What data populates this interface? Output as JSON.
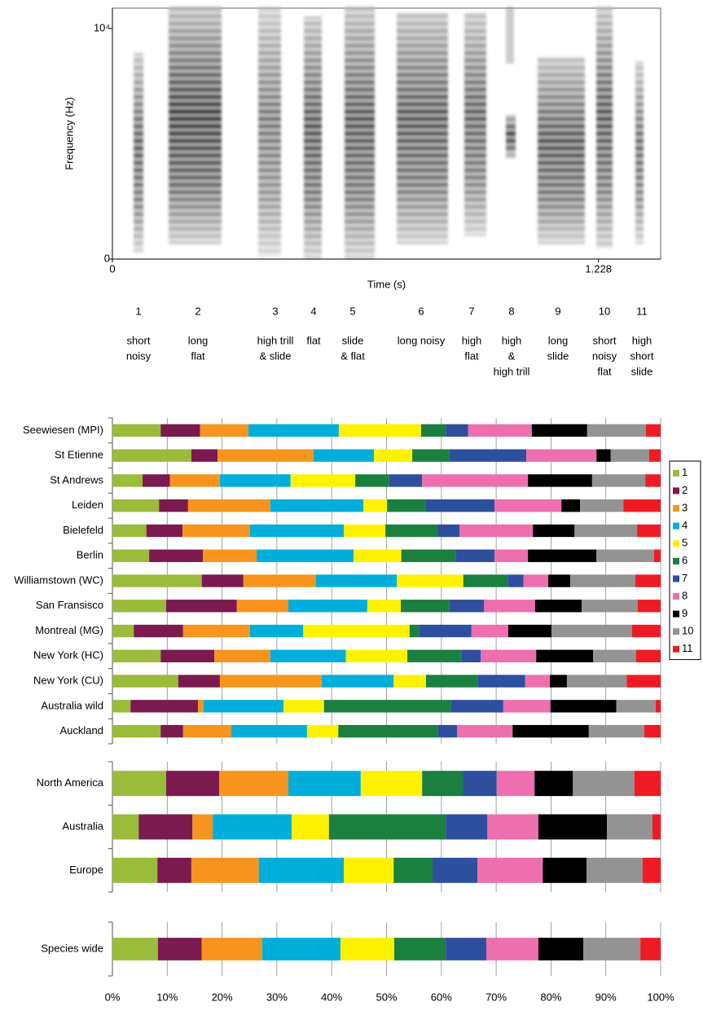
{
  "chart_data": [
    {
      "type": "spectrogram",
      "x_label": "Time (s)",
      "y_label": "Frequency (Hz)",
      "xlim": [
        0,
        1.385
      ],
      "xticks": [
        0,
        1.228
      ],
      "ylim": [
        0,
        10880
      ],
      "yticks": [
        0,
        {
          "value": 10000,
          "label": "10⁴"
        }
      ],
      "syllables": [
        {
          "number": 1,
          "label": [
            "short",
            "noisy"
          ]
        },
        {
          "number": 2,
          "label": [
            "long",
            "flat"
          ]
        },
        {
          "number": 3,
          "label": [
            "high trill",
            "& slide"
          ]
        },
        {
          "number": 4,
          "label": [
            "flat"
          ]
        },
        {
          "number": 5,
          "label": [
            "slide",
            "& flat"
          ]
        },
        {
          "number": 6,
          "label": [
            "long noisy"
          ]
        },
        {
          "number": 7,
          "label": [
            "high",
            "flat"
          ]
        },
        {
          "number": 8,
          "label": [
            "high",
            "&",
            "high trill"
          ]
        },
        {
          "number": 9,
          "label": [
            "long",
            "slide"
          ]
        },
        {
          "number": 10,
          "label": [
            "short",
            "noisy",
            "flat"
          ]
        },
        {
          "number": 11,
          "label": [
            "high",
            "short",
            "slide"
          ]
        }
      ]
    },
    {
      "type": "stacked_bar",
      "orientation": "horizontal",
      "legend": "right",
      "grid": true,
      "xlim": [
        0,
        100
      ],
      "xticks": [
        0,
        10,
        20,
        30,
        40,
        50,
        60,
        70,
        80,
        90,
        100
      ],
      "categories": [
        "Seewiesen (MPI)",
        "St Etienne",
        "St Andrews",
        "Leiden",
        "Bielefeld",
        "Berlin",
        "Williamstown (WC)",
        "San Fransisco",
        "Montreal (MG)",
        "New York (HC)",
        "New York (CU)",
        "Australia wild",
        "Auckland"
      ],
      "series": [
        {
          "name": "1",
          "color": "#9bbb3b",
          "values": [
            8.8,
            14.4,
            5.5,
            8.5,
            6.2,
            6.7,
            16.3,
            9.8,
            3.9,
            8.8,
            12.0,
            3.3,
            8.8
          ]
        },
        {
          "name": "2",
          "color": "#7b1a4f",
          "values": [
            7.2,
            4.8,
            5.0,
            5.3,
            6.6,
            9.8,
            7.6,
            12.9,
            9.0,
            9.8,
            7.6,
            12.3,
            4.1
          ]
        },
        {
          "name": "3",
          "color": "#f7941d",
          "values": [
            8.8,
            17.5,
            9.1,
            15.0,
            12.3,
            9.8,
            13.2,
            9.4,
            12.2,
            10.2,
            18.6,
            1.0,
            8.8
          ]
        },
        {
          "name": "4",
          "color": "#00aedb",
          "values": [
            16.5,
            11.0,
            12.9,
            17.0,
            17.1,
            17.7,
            14.8,
            14.4,
            9.7,
            13.8,
            13.1,
            14.6,
            13.8
          ]
        },
        {
          "name": "5",
          "color": "#fff200",
          "values": [
            15.0,
            7.0,
            11.8,
            4.3,
            7.6,
            8.7,
            12.1,
            6.1,
            19.4,
            11.2,
            5.9,
            7.4,
            5.7
          ]
        },
        {
          "name": "6",
          "color": "#1b7f40",
          "values": [
            4.5,
            6.8,
            6.2,
            7.1,
            9.5,
            9.9,
            8.1,
            8.9,
            1.7,
            9.9,
            9.4,
            23.2,
            18.2
          ]
        },
        {
          "name": "7",
          "color": "#2e4e9e",
          "values": [
            4.1,
            14.0,
            6.0,
            12.5,
            4.0,
            7.1,
            2.9,
            6.3,
            9.6,
            3.5,
            8.7,
            9.5,
            3.5
          ]
        },
        {
          "name": "8",
          "color": "#ee6fad",
          "values": [
            11.6,
            12.8,
            19.3,
            12.2,
            13.4,
            6.1,
            4.5,
            9.3,
            6.7,
            10.1,
            4.5,
            8.6,
            10.1
          ]
        },
        {
          "name": "9",
          "color": "#000000",
          "values": [
            10.1,
            2.6,
            11.7,
            3.4,
            7.6,
            12.5,
            4.0,
            8.5,
            7.9,
            10.4,
            3.1,
            12.0,
            13.9
          ]
        },
        {
          "name": "10",
          "color": "#939393",
          "values": [
            10.7,
            7.0,
            9.7,
            7.9,
            11.4,
            10.5,
            11.9,
            10.2,
            14.7,
            7.8,
            10.9,
            7.2,
            10.1
          ]
        },
        {
          "name": "11",
          "color": "#ed1c24",
          "values": [
            2.7,
            2.1,
            2.8,
            6.8,
            4.3,
            1.2,
            4.6,
            4.2,
            5.2,
            4.5,
            6.2,
            0.9,
            3.0
          ]
        }
      ]
    },
    {
      "type": "stacked_bar",
      "orientation": "horizontal",
      "grid": true,
      "xlim": [
        0,
        100
      ],
      "xticks": [
        0,
        10,
        20,
        30,
        40,
        50,
        60,
        70,
        80,
        90,
        100
      ],
      "categories": [
        "North America",
        "Australia",
        "Europe"
      ],
      "series": [
        {
          "color": "#9bbb3b",
          "values": [
            9.8,
            4.8,
            8.2
          ]
        },
        {
          "color": "#7b1a4f",
          "values": [
            9.7,
            9.8,
            6.2
          ]
        },
        {
          "color": "#f7941d",
          "values": [
            12.6,
            3.7,
            12.3
          ]
        },
        {
          "color": "#00aedb",
          "values": [
            13.2,
            14.4,
            15.5
          ]
        },
        {
          "color": "#fff200",
          "values": [
            11.2,
            6.8,
            9.1
          ]
        },
        {
          "color": "#1b7f40",
          "values": [
            7.4,
            21.3,
            7.1
          ]
        },
        {
          "color": "#2e4e9e",
          "values": [
            6.2,
            7.6,
            8.2
          ]
        },
        {
          "color": "#ee6fad",
          "values": [
            6.9,
            9.3,
            11.9
          ]
        },
        {
          "color": "#000000",
          "values": [
            7.0,
            12.5,
            8.0
          ]
        },
        {
          "color": "#939393",
          "values": [
            11.2,
            8.3,
            10.2
          ]
        },
        {
          "color": "#ed1c24",
          "values": [
            4.8,
            1.5,
            3.3
          ]
        }
      ]
    },
    {
      "type": "stacked_bar",
      "orientation": "horizontal",
      "grid": true,
      "xlim": [
        0,
        100
      ],
      "xticks": [
        {
          "value": 0,
          "label": "0%"
        },
        {
          "value": 10,
          "label": "10%"
        },
        {
          "value": 20,
          "label": "20%"
        },
        {
          "value": 30,
          "label": "30%"
        },
        {
          "value": 40,
          "label": "40%"
        },
        {
          "value": 50,
          "label": "50%"
        },
        {
          "value": 60,
          "label": "60%"
        },
        {
          "value": 70,
          "label": "70%"
        },
        {
          "value": 80,
          "label": "80%"
        },
        {
          "value": 90,
          "label": "90%"
        },
        {
          "value": 100,
          "label": "100%"
        }
      ],
      "categories": [
        "Species wide"
      ],
      "series": [
        {
          "color": "#9bbb3b",
          "values": [
            8.3
          ]
        },
        {
          "color": "#7b1a4f",
          "values": [
            8.0
          ]
        },
        {
          "color": "#f7941d",
          "values": [
            11.0
          ]
        },
        {
          "color": "#00aedb",
          "values": [
            14.3
          ]
        },
        {
          "color": "#fff200",
          "values": [
            9.8
          ]
        },
        {
          "color": "#1b7f40",
          "values": [
            9.4
          ]
        },
        {
          "color": "#2e4e9e",
          "values": [
            7.4
          ]
        },
        {
          "color": "#ee6fad",
          "values": [
            9.5
          ]
        },
        {
          "color": "#000000",
          "values": [
            8.2
          ]
        },
        {
          "color": "#939393",
          "values": [
            10.4
          ]
        },
        {
          "color": "#ed1c24",
          "values": [
            3.7
          ]
        }
      ]
    }
  ]
}
